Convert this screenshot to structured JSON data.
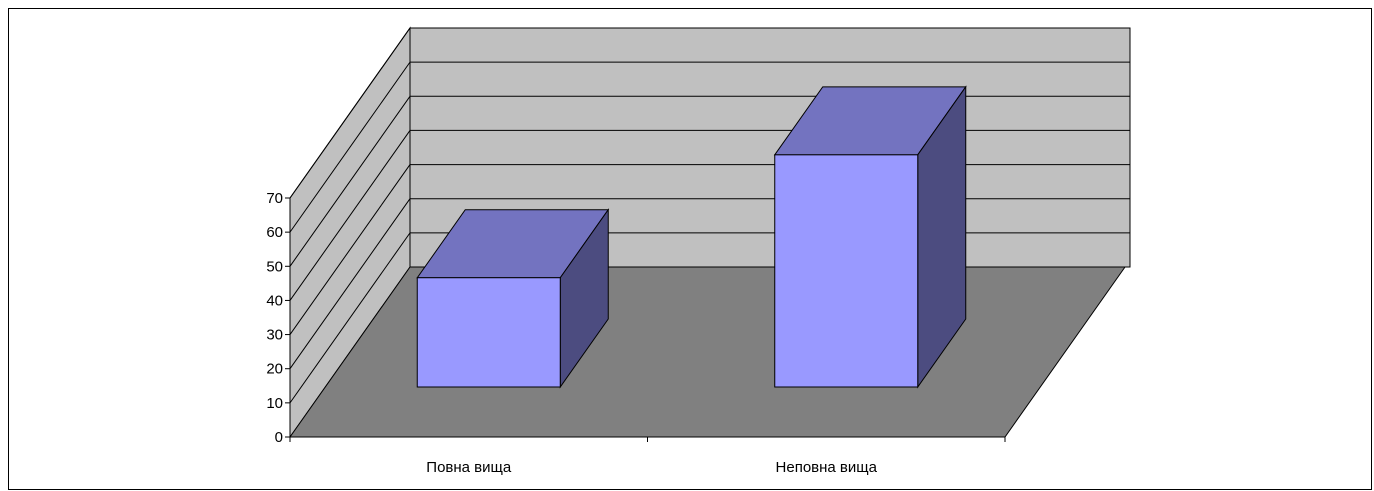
{
  "chart_data": {
    "type": "bar",
    "style": "3d-column",
    "categories": [
      "Повна вища",
      "Неповна вища"
    ],
    "values": [
      32,
      68
    ],
    "y_ticks": [
      0,
      10,
      20,
      30,
      40,
      50,
      60,
      70
    ],
    "ylim": [
      0,
      70
    ],
    "grid": true,
    "legend": "none",
    "title": "",
    "xlabel": "",
    "ylabel": ""
  },
  "colors": {
    "bar_front": "#9999ff",
    "bar_top": "#7373c0",
    "bar_side": "#4c4c80",
    "floor": "#808080",
    "walls": "#c0c0c0",
    "grid": "#000000"
  }
}
